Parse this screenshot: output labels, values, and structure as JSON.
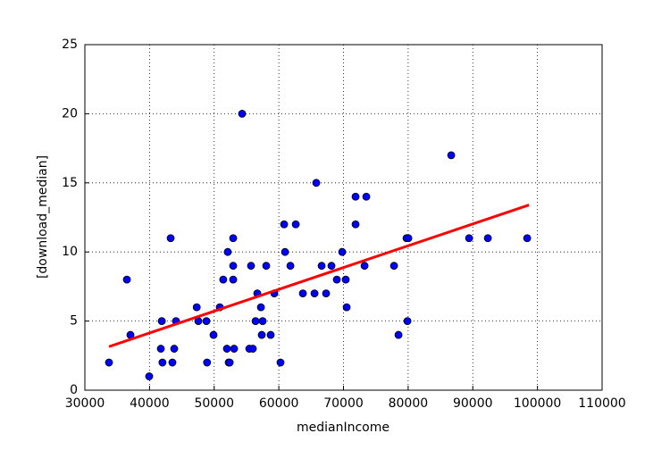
{
  "chart_data": {
    "type": "scatter",
    "xlabel": "medianIncome",
    "ylabel": "[download_median]",
    "x": [
      33730,
      36500,
      37050,
      39950,
      41900,
      41750,
      42000,
      43270,
      43540,
      43820,
      44100,
      47300,
      47550,
      48800,
      48900,
      49900,
      50870,
      51400,
      52100,
      51970,
      52250,
      52400,
      52940,
      52940,
      52940,
      53080,
      54320,
      55430,
      55700,
      55980,
      56400,
      56670,
      57230,
      57360,
      57500,
      58050,
      58740,
      59300,
      60260,
      60820,
      60960,
      61790,
      62620,
      63720,
      65520,
      65790,
      66620,
      67310,
      68140,
      68970,
      69800,
      70350,
      70490,
      71870,
      71870,
      73260,
      73530,
      77820,
      78510,
      79750,
      79890,
      80030,
      86660,
      89430,
      92330,
      98410
    ],
    "y": [
      2,
      8,
      4,
      1,
      5,
      3,
      2,
      11,
      2,
      3,
      5,
      6,
      5,
      5,
      2,
      4,
      6,
      8,
      10,
      3,
      2,
      2,
      11,
      9,
      8,
      3,
      20,
      3,
      9,
      3,
      5,
      7,
      6,
      4,
      5,
      9,
      4,
      7,
      2,
      12,
      10,
      9,
      12,
      7,
      7,
      15,
      9,
      7,
      9,
      8,
      10,
      8,
      6,
      14,
      12,
      9,
      14,
      9,
      4,
      11,
      5,
      11,
      17,
      11,
      11,
      11
    ],
    "color": "#0000ff",
    "trend": {
      "x": [
        33730,
        98700
      ],
      "y": [
        3.15,
        13.4
      ],
      "color": "#ff0000"
    },
    "xlim": [
      30000,
      110000
    ],
    "xticks": [
      30000,
      40000,
      50000,
      60000,
      70000,
      80000,
      90000,
      100000,
      110000
    ],
    "ylim": [
      0,
      25
    ],
    "yticks": [
      0,
      5,
      10,
      15,
      20,
      25
    ],
    "grid": true
  }
}
